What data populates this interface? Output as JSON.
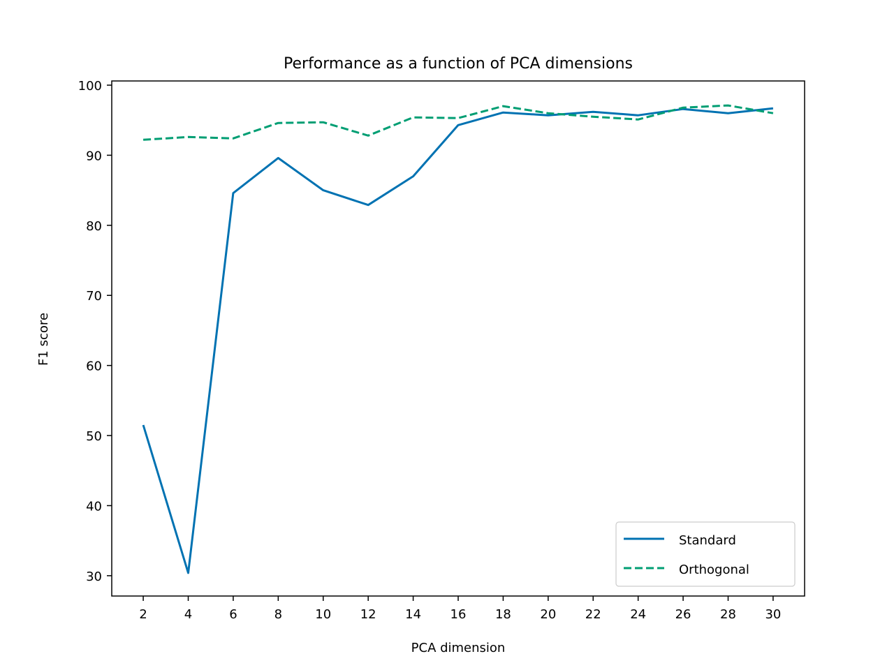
{
  "chart_data": {
    "type": "line",
    "title": "Performance as a function of PCA dimensions",
    "xlabel": "PCA dimension",
    "ylabel": "F1 score",
    "x": [
      2,
      4,
      6,
      8,
      10,
      12,
      14,
      16,
      18,
      20,
      22,
      24,
      26,
      28,
      30
    ],
    "xlim": [
      0.6,
      31.4
    ],
    "ylim": [
      27.1,
      100.6
    ],
    "xticks": [
      2,
      4,
      6,
      8,
      10,
      12,
      14,
      16,
      18,
      20,
      22,
      24,
      26,
      28,
      30
    ],
    "yticks": [
      30,
      40,
      50,
      60,
      70,
      80,
      90,
      100
    ],
    "grid": false,
    "legend_position": "lower right",
    "series": [
      {
        "name": "Standard",
        "color": "#0072B2",
        "style": "solid",
        "values": [
          51.5,
          30.4,
          84.6,
          89.6,
          85.0,
          82.9,
          87.0,
          94.3,
          96.1,
          95.7,
          96.2,
          95.7,
          96.6,
          96.0,
          96.7
        ]
      },
      {
        "name": "Orthogonal",
        "color": "#009E73",
        "style": "dashed",
        "values": [
          92.2,
          92.6,
          92.4,
          94.6,
          94.7,
          92.8,
          95.4,
          95.3,
          97.0,
          96.0,
          95.5,
          95.1,
          96.8,
          97.1,
          96.0
        ]
      }
    ]
  }
}
